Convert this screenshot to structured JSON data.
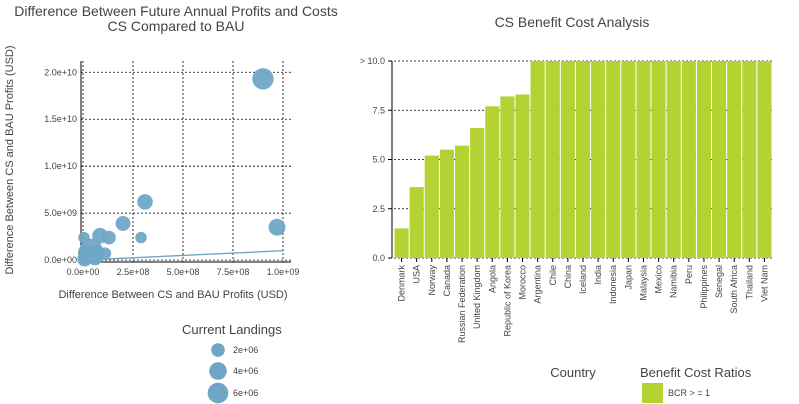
{
  "chart_data": [
    {
      "type": "scatter",
      "title_line1": "Difference Between Future Annual Profits and Costs",
      "title_line2": "CS Compared to BAU",
      "xlabel": "Difference Between CS and BAU Profits (USD)",
      "ylabel": "Difference Between CS and BAU Profits (USD)",
      "xlim": [
        -10000000,
        1040000000
      ],
      "ylim": [
        -200000000,
        21200000000
      ],
      "xticks": [
        0,
        250000000,
        500000000,
        750000000,
        1000000000
      ],
      "xtick_labels": [
        "0.0e+00",
        "2.5e+08",
        "5.0e+08",
        "7.5e+08",
        "1.0e+09"
      ],
      "yticks": [
        0,
        5000000000,
        10000000000,
        15000000000,
        20000000000
      ],
      "ytick_labels": [
        "0.0e+00",
        "5.0e+09",
        "1.0e+10",
        "1.5e+10",
        "2.0e+10"
      ],
      "grid": true,
      "point_color": "#6fa6c6",
      "points": [
        {
          "x": 900000000,
          "y": 19300000000,
          "size": 6500000
        },
        {
          "x": 970000000,
          "y": 3500000000,
          "size": 3600000
        },
        {
          "x": 310000000,
          "y": 6200000000,
          "size": 2900000
        },
        {
          "x": 200000000,
          "y": 3900000000,
          "size": 2600000
        },
        {
          "x": 130000000,
          "y": 2400000000,
          "size": 2000000
        },
        {
          "x": 290000000,
          "y": 2400000000,
          "size": 1200000
        },
        {
          "x": 85000000,
          "y": 2600000000,
          "size": 2900000
        },
        {
          "x": 40000000,
          "y": 1100000000,
          "size": 7300000
        },
        {
          "x": 15000000,
          "y": 800000000,
          "size": 3200000
        },
        {
          "x": 70000000,
          "y": 900000000,
          "size": 2200000
        },
        {
          "x": 110000000,
          "y": 700000000,
          "size": 1500000
        },
        {
          "x": 20000000,
          "y": 300000000,
          "size": 1500000
        },
        {
          "x": 60000000,
          "y": 200000000,
          "size": 2300000
        },
        {
          "x": 5000000,
          "y": 2400000000,
          "size": 1200000
        },
        {
          "x": 8000000,
          "y": 100000000,
          "size": 2500000
        }
      ],
      "trend_line": {
        "x": [
          0,
          1000000000
        ],
        "y": [
          0,
          1000000000
        ]
      },
      "legend": {
        "title": "Current Landings",
        "items": [
          {
            "label": "2e+06",
            "size": 2000000
          },
          {
            "label": "4e+06",
            "size": 4000000
          },
          {
            "label": "6e+06",
            "size": 6000000
          }
        ]
      }
    },
    {
      "type": "bar",
      "title": "CS Benefit Cost Analysis",
      "xlabel": "Country",
      "ylim": [
        0,
        10
      ],
      "yticks": [
        0,
        2.5,
        5,
        7.5,
        10
      ],
      "ytick_labels": [
        "0.0",
        "2.5",
        "5.0",
        "7.5",
        "> 10.0"
      ],
      "bar_color": "#b4d333",
      "categories": [
        "Denmark",
        "USA",
        "Norway",
        "Canada",
        "Russian Federation",
        "United Kingdom",
        "Angola",
        "Republic of Korea",
        "Morocco",
        "Argentina",
        "Chile",
        "China",
        "Iceland",
        "India",
        "Indonesia",
        "Japan",
        "Malaysia",
        "Mexico",
        "Namibia",
        "Peru",
        "Philippines",
        "Senegal",
        "South Africa",
        "Thailand",
        "Viet Nam"
      ],
      "values": [
        1.5,
        3.6,
        5.2,
        5.5,
        5.7,
        6.6,
        7.7,
        8.2,
        8.3,
        10,
        10,
        10,
        10,
        10,
        10,
        10,
        10,
        10,
        10,
        10,
        10,
        10,
        10,
        10,
        10
      ],
      "legend": {
        "title": "Benefit Cost Ratios",
        "items": [
          {
            "label": "BCR > = 1",
            "color": "#b4d333"
          }
        ]
      }
    }
  ]
}
